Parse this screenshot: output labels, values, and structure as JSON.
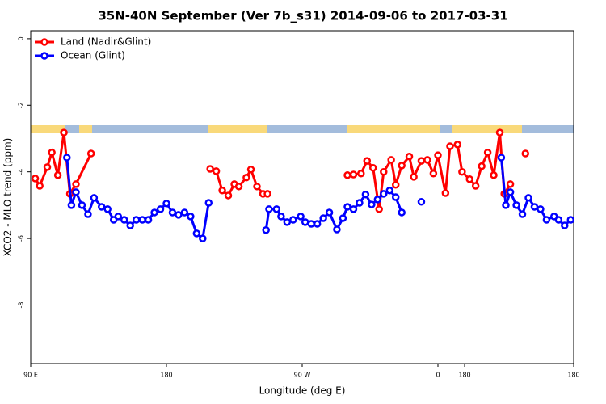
{
  "chart_data": {
    "type": "line",
    "title": "35N-40N September (Ver 7b_s31)   2014-09-06 to 2017-03-31",
    "xlabel": "Longitude (deg E)",
    "ylabel": "XCO2 - MLO trend (ppm)",
    "xlim": [
      90,
      450
    ],
    "ylim": [
      -9.76,
      0.24
    ],
    "xticks": [
      {
        "value": 90,
        "label": "90 E"
      },
      180,
      {
        "value": 270,
        "label": "90 W"
      },
      {
        "value": 360,
        "label": "0"
      },
      {
        "value": 450,
        "label": "180"
      },
      {
        "value": 450,
        "label": "180"
      }
    ],
    "yticks": [
      0,
      -2,
      -4,
      -6,
      -8
    ],
    "legend": "top-left",
    "series": [
      {
        "name": "Land (Nadir&Glint)",
        "color": "#ff0000",
        "x": [
          93,
          96,
          101,
          104,
          108,
          112,
          116,
          120,
          130,
          null,
          209,
          213,
          217,
          221,
          225,
          228,
          233,
          236,
          240,
          244,
          247,
          null,
          300,
          304,
          309,
          313,
          317,
          321,
          324,
          329,
          332,
          336,
          341,
          344,
          349,
          353,
          357,
          360,
          365,
          368,
          373,
          376,
          381,
          385,
          389,
          393,
          397,
          401,
          404,
          408,
          null,
          418
        ],
        "values": [
          -4.2,
          -4.42,
          -3.86,
          -3.42,
          -4.1,
          -2.82,
          -4.66,
          -4.37,
          -3.45,
          null,
          -3.91,
          -3.98,
          -4.56,
          -4.71,
          -4.37,
          -4.44,
          -4.17,
          -3.93,
          -4.44,
          -4.66,
          -4.66,
          null,
          -4.1,
          -4.08,
          -4.05,
          -3.67,
          -3.88,
          -5.12,
          -4.0,
          -3.64,
          -4.39,
          -3.81,
          -3.54,
          -4.15,
          -3.67,
          -3.64,
          -4.05,
          -3.5,
          -4.64,
          -3.23,
          -3.18,
          -4.0,
          -4.22,
          -4.42,
          -3.83,
          -3.42,
          -4.1,
          -2.82,
          -4.66,
          -4.37,
          null,
          -3.45
        ]
      },
      {
        "name": "Ocean (Glint)",
        "color": "#0000ff",
        "x": [
          114,
          117,
          120,
          124,
          128,
          132,
          137,
          141,
          145,
          148,
          152,
          156,
          160,
          164,
          168,
          172,
          176,
          180,
          184,
          188,
          192,
          196,
          200,
          204,
          208,
          null,
          246,
          248,
          253,
          256,
          260,
          264,
          269,
          272,
          276,
          280,
          284,
          288,
          293,
          297,
          300,
          304,
          308,
          312,
          316,
          320,
          324,
          328,
          332,
          336,
          null,
          349,
          null,
          402,
          405,
          408,
          412,
          416,
          420,
          424,
          428,
          432,
          437,
          440,
          444,
          448
        ],
        "values": [
          -3.57,
          -5.0,
          -4.61,
          -5.0,
          -5.27,
          -4.78,
          -5.05,
          -5.12,
          -5.44,
          -5.34,
          -5.44,
          -5.61,
          -5.44,
          -5.44,
          -5.44,
          -5.22,
          -5.12,
          -4.95,
          -5.22,
          -5.29,
          -5.22,
          -5.34,
          -5.85,
          -6.0,
          -4.93,
          null,
          -5.75,
          -5.12,
          -5.12,
          -5.34,
          -5.51,
          -5.44,
          -5.34,
          -5.51,
          -5.56,
          -5.56,
          -5.39,
          -5.22,
          -5.73,
          -5.39,
          -5.05,
          -5.12,
          -4.93,
          -4.68,
          -4.98,
          -4.83,
          -4.66,
          -4.56,
          -4.76,
          -5.22,
          null,
          -4.9,
          null,
          -3.57,
          -5.0,
          -4.61,
          -5.0,
          -5.27,
          -4.78,
          -5.05,
          -5.12,
          -5.44,
          -5.34,
          -5.44,
          -5.61,
          -5.44
        ]
      }
    ]
  }
}
